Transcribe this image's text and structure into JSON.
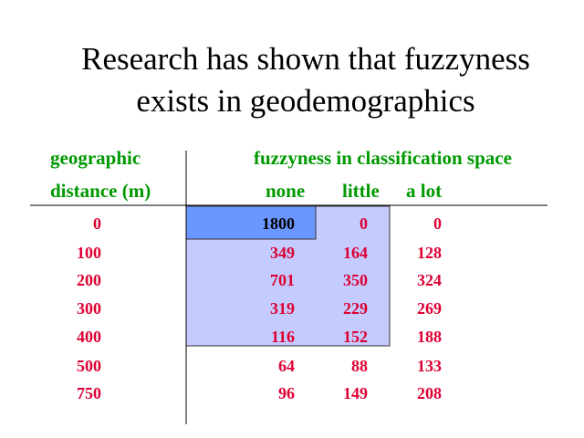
{
  "title": {
    "lines": [
      "Research has shown that fuzzyness",
      "exists in geodemographics"
    ]
  },
  "table": {
    "row_header": [
      "geographic",
      "distance (m)"
    ],
    "group_header": "fuzzyness in classification space",
    "columns": [
      "none",
      "little",
      "a lot"
    ],
    "rows": [
      [
        0,
        1800,
        0,
        0
      ],
      [
        100,
        349,
        164,
        128
      ],
      [
        200,
        701,
        350,
        324
      ],
      [
        300,
        319,
        229,
        269
      ],
      [
        400,
        116,
        152,
        188
      ],
      [
        500,
        64,
        88,
        133
      ],
      [
        750,
        96,
        149,
        208
      ]
    ]
  }
}
